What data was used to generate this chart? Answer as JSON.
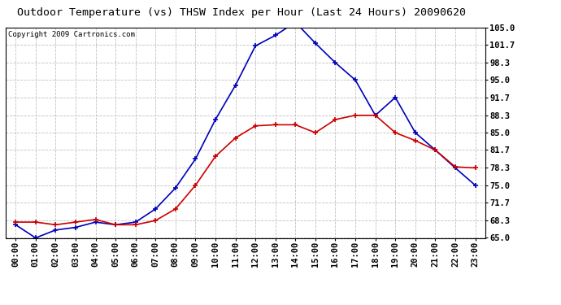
{
  "title": "Outdoor Temperature (vs) THSW Index per Hour (Last 24 Hours) 20090620",
  "copyright": "Copyright 2009 Cartronics.com",
  "hours": [
    "00:00",
    "01:00",
    "02:00",
    "03:00",
    "04:00",
    "05:00",
    "06:00",
    "07:00",
    "08:00",
    "09:00",
    "10:00",
    "11:00",
    "12:00",
    "13:00",
    "14:00",
    "15:00",
    "16:00",
    "17:00",
    "18:00",
    "19:00",
    "20:00",
    "21:00",
    "22:00",
    "23:00"
  ],
  "thsw": [
    67.5,
    65.0,
    66.5,
    67.0,
    68.0,
    67.5,
    68.0,
    70.5,
    74.5,
    80.0,
    87.5,
    94.0,
    101.5,
    103.5,
    106.0,
    102.0,
    98.3,
    95.0,
    88.3,
    91.7,
    85.0,
    81.7,
    78.3,
    75.0
  ],
  "temp": [
    68.0,
    68.0,
    67.5,
    68.0,
    68.5,
    67.5,
    67.5,
    68.3,
    70.5,
    75.0,
    80.5,
    84.0,
    86.3,
    86.5,
    86.5,
    85.0,
    87.5,
    88.3,
    88.3,
    85.0,
    83.5,
    81.7,
    78.5,
    78.3
  ],
  "ylim": [
    65.0,
    105.0
  ],
  "yticks": [
    65.0,
    68.3,
    71.7,
    75.0,
    78.3,
    81.7,
    85.0,
    88.3,
    91.7,
    95.0,
    98.3,
    101.7,
    105.0
  ],
  "ytick_labels": [
    "65.0",
    "68.3",
    "71.7",
    "75.0",
    "78.3",
    "81.7",
    "85.0",
    "88.3",
    "91.7",
    "95.0",
    "98.3",
    "101.7",
    "105.0"
  ],
  "thsw_color": "#0000bb",
  "temp_color": "#cc0000",
  "grid_color": "#c0c0c0",
  "bg_color": "#ffffff",
  "title_fontsize": 9.5,
  "copyright_fontsize": 6.5,
  "tick_fontsize": 7.5,
  "ytick_fontsize": 7.5
}
